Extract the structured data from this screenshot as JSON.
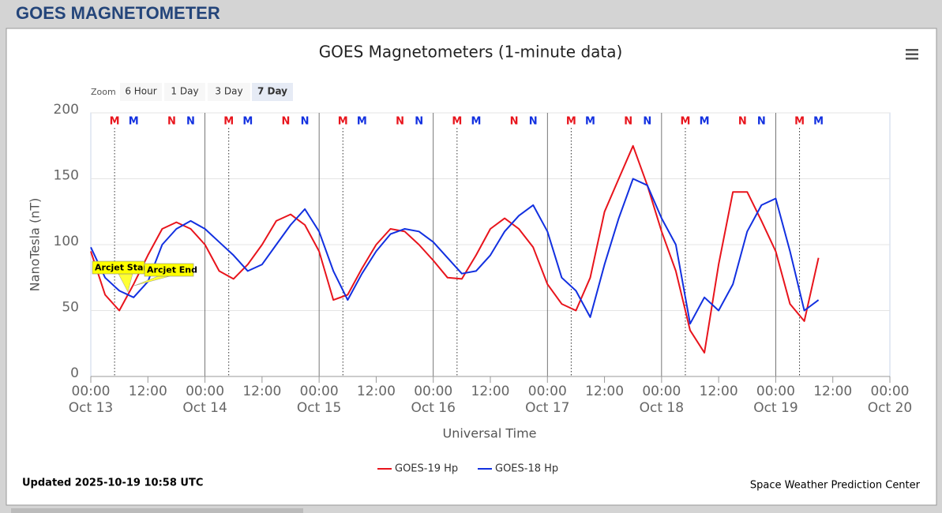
{
  "page_title": "GOES MAGNETOMETER",
  "zoom": {
    "label": "Zoom",
    "buttons": [
      "6 Hour",
      "1 Day",
      "3 Day",
      "7 Day"
    ],
    "selected": 3
  },
  "chart_data": {
    "type": "line",
    "title": "GOES Magnetometers (1-minute data)",
    "x_label": "Universal Time",
    "y_label": "NanoTesla (nT)",
    "x": [
      0,
      3,
      6,
      9,
      12,
      15,
      18,
      21,
      24,
      27,
      30,
      33,
      36,
      39,
      42,
      45,
      48,
      51,
      54,
      57,
      60,
      63,
      66,
      69,
      72,
      75,
      78,
      81,
      84,
      87,
      90,
      93,
      96,
      99,
      102,
      105,
      108,
      111,
      114,
      117,
      120,
      123,
      126,
      129,
      132,
      135,
      138,
      141,
      144,
      147,
      150,
      153
    ],
    "series": [
      {
        "name": "GOES-19 Hp",
        "color": "#e8141c",
        "values": [
          95,
          62,
          50,
          70,
          92,
          112,
          117,
          112,
          100,
          80,
          74,
          85,
          100,
          118,
          123,
          115,
          95,
          58,
          62,
          82,
          100,
          112,
          110,
          100,
          88,
          75,
          74,
          92,
          112,
          120,
          112,
          98,
          70,
          55,
          50,
          75,
          125,
          150,
          175,
          145,
          110,
          80,
          35,
          18,
          85,
          140,
          140,
          118,
          95,
          55,
          42,
          90
        ]
      },
      {
        "name": "GOES-18 Hp",
        "color": "#1230e0",
        "values": [
          98,
          75,
          65,
          60,
          72,
          100,
          112,
          118,
          112,
          102,
          92,
          80,
          85,
          100,
          115,
          127,
          110,
          80,
          58,
          78,
          95,
          108,
          112,
          110,
          102,
          90,
          78,
          80,
          92,
          110,
          122,
          130,
          110,
          75,
          65,
          45,
          85,
          120,
          150,
          145,
          120,
          100,
          40,
          60,
          50,
          70,
          110,
          130,
          135,
          95,
          50,
          58
        ]
      }
    ],
    "xlim": [
      0,
      168
    ],
    "xticks": [
      {
        "value": 0,
        "label": "00:00",
        "date": "Oct 13"
      },
      {
        "value": 12,
        "label": "12:00"
      },
      {
        "value": 24,
        "label": "00:00",
        "date": "Oct 14"
      },
      {
        "value": 36,
        "label": "12:00"
      },
      {
        "value": 48,
        "label": "00:00",
        "date": "Oct 15"
      },
      {
        "value": 60,
        "label": "12:00"
      },
      {
        "value": 72,
        "label": "00:00",
        "date": "Oct 16"
      },
      {
        "value": 84,
        "label": "12:00"
      },
      {
        "value": 96,
        "label": "00:00",
        "date": "Oct 17"
      },
      {
        "value": 108,
        "label": "12:00"
      },
      {
        "value": 120,
        "label": "00:00",
        "date": "Oct 18"
      },
      {
        "value": 132,
        "label": "12:00"
      },
      {
        "value": 144,
        "label": "00:00",
        "date": "Oct 19"
      },
      {
        "value": 156,
        "label": "12:00"
      },
      {
        "value": 168,
        "label": "00:00",
        "date": "Oct 20"
      }
    ],
    "ylim": [
      0,
      200
    ],
    "yticks": [
      0,
      50,
      100,
      150,
      200
    ],
    "grid": true,
    "local_time_markers": [
      {
        "label": "M",
        "color": "#e8141c",
        "x": [
          5,
          29,
          53,
          77,
          101,
          125,
          149
        ],
        "line": true
      },
      {
        "label": "M",
        "color": "#1230e0",
        "x": [
          9,
          33,
          57,
          81,
          105,
          129,
          153
        ]
      },
      {
        "label": "N",
        "color": "#e8141c",
        "x": [
          17,
          41,
          65,
          89,
          113,
          137
        ]
      },
      {
        "label": "N",
        "color": "#1230e0",
        "x": [
          21,
          45,
          69,
          93,
          117,
          141
        ]
      }
    ],
    "annotations": [
      "Arcjet Start",
      "Arcjet End"
    ],
    "updated": "Updated 2025-10-19 10:58 UTC",
    "credit": "Space Weather Prediction Center"
  }
}
